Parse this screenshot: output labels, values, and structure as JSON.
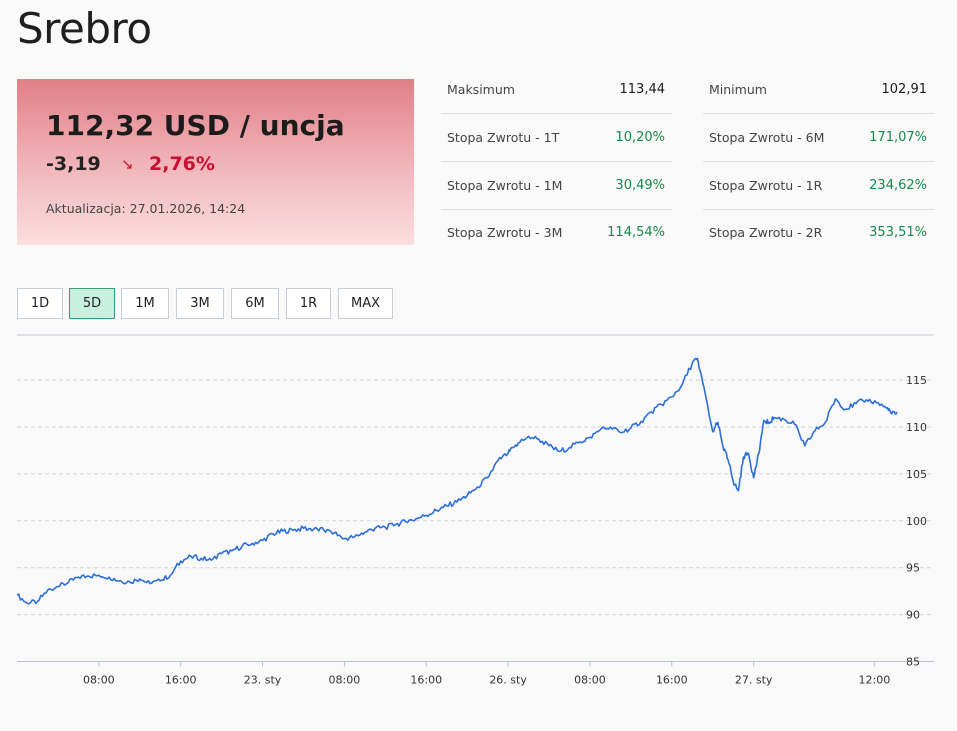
{
  "page": {
    "title": "Srebro"
  },
  "quote": {
    "price": "112,32 USD / uncja",
    "change": "-3,19",
    "change_pct": "2,76%",
    "direction_icon": "down-right-arrow-icon",
    "updated": "Aktualizacja: 27.01.2026, 14:24",
    "colors": {
      "negative": "#c8102e",
      "positive": "#168a4b"
    }
  },
  "stats": [
    {
      "label": "Maksimum",
      "value": "113,44",
      "positive": false
    },
    {
      "label": "Minimum",
      "value": "102,91",
      "positive": false
    },
    {
      "label": "Stopa Zwrotu - 1T",
      "value": "10,20%",
      "positive": true
    },
    {
      "label": "Stopa Zwrotu - 6M",
      "value": "171,07%",
      "positive": true
    },
    {
      "label": "Stopa Zwrotu - 1M",
      "value": "30,49%",
      "positive": true
    },
    {
      "label": "Stopa Zwrotu - 1R",
      "value": "234,62%",
      "positive": true
    },
    {
      "label": "Stopa Zwrotu - 3M",
      "value": "114,54%",
      "positive": true
    },
    {
      "label": "Stopa Zwrotu - 2R",
      "value": "353,51%",
      "positive": true
    }
  ],
  "ranges": [
    {
      "label": "1D",
      "active": false
    },
    {
      "label": "5D",
      "active": true
    },
    {
      "label": "1M",
      "active": false
    },
    {
      "label": "3M",
      "active": false
    },
    {
      "label": "6M",
      "active": false
    },
    {
      "label": "1R",
      "active": false
    },
    {
      "label": "MAX",
      "active": false
    }
  ],
  "chart_data": {
    "type": "line",
    "title": "",
    "xlabel": "",
    "ylabel": "",
    "ylim": [
      85,
      118
    ],
    "y_ticks": [
      "85",
      "90",
      "95",
      "100",
      "105",
      "110",
      "115"
    ],
    "x_ticks": [
      "08:00",
      "16:00",
      "23. sty",
      "08:00",
      "16:00",
      "26. sty",
      "08:00",
      "16:00",
      "27. sty",
      "12:00"
    ],
    "x_tick_positions": [
      8,
      16,
      24,
      32,
      40,
      48,
      56,
      64,
      72,
      83.8
    ],
    "xlim": [
      0,
      86.5
    ],
    "grid": "horizontal dashed",
    "line_color": "#2d6fd7",
    "series": [
      {
        "x": [
          0,
          1,
          2,
          3,
          4,
          5,
          6,
          7,
          8,
          9,
          10,
          11,
          12,
          13,
          14,
          15,
          16,
          17,
          18,
          19,
          20,
          21,
          22,
          23,
          24,
          25,
          26,
          27,
          28,
          29,
          30,
          31,
          32,
          33,
          34,
          35,
          36,
          37,
          38,
          39,
          40,
          41,
          42,
          43,
          44,
          45,
          46,
          47,
          48,
          48.5,
          49,
          50,
          51,
          52,
          53,
          54,
          55,
          56,
          57,
          58,
          59,
          60,
          61,
          62,
          63,
          64,
          65,
          66,
          66.5,
          67,
          68,
          68.5,
          69,
          69.5,
          70,
          70.5,
          71,
          71.5,
          72,
          72.5,
          73,
          73.5,
          74,
          75,
          76,
          77,
          78,
          79,
          80,
          81,
          82,
          83,
          84,
          85,
          85.5,
          86
        ],
        "values": [
          92.1,
          91.2,
          91.4,
          92.6,
          93.0,
          93.4,
          94.0,
          94.1,
          94.2,
          94.0,
          93.6,
          93.5,
          93.8,
          93.3,
          93.6,
          94.2,
          95.7,
          96.2,
          96.0,
          95.8,
          96.5,
          96.8,
          97.3,
          97.6,
          97.9,
          98.6,
          98.9,
          99.0,
          99.2,
          99.1,
          99.0,
          98.7,
          98.1,
          98.3,
          98.8,
          99.2,
          99.3,
          99.6,
          99.9,
          100.2,
          100.6,
          101.1,
          101.6,
          102.0,
          102.7,
          103.6,
          104.6,
          106.4,
          107.2,
          107.8,
          108.3,
          109.0,
          108.7,
          108.0,
          107.4,
          107.8,
          108.4,
          108.9,
          109.7,
          110.0,
          109.4,
          109.9,
          110.6,
          111.6,
          112.4,
          113.2,
          114.5,
          116.8,
          117.3,
          114.8,
          109.5,
          110.5,
          107.9,
          106.5,
          104.2,
          103.2,
          106.8,
          107.2,
          104.6,
          107.2,
          110.7,
          110.5,
          111.0,
          110.8,
          110.3,
          108.0,
          109.6,
          110.5,
          113.0,
          111.9,
          112.5,
          112.9,
          112.6,
          112.0,
          111.4,
          111.6
        ]
      }
    ]
  }
}
